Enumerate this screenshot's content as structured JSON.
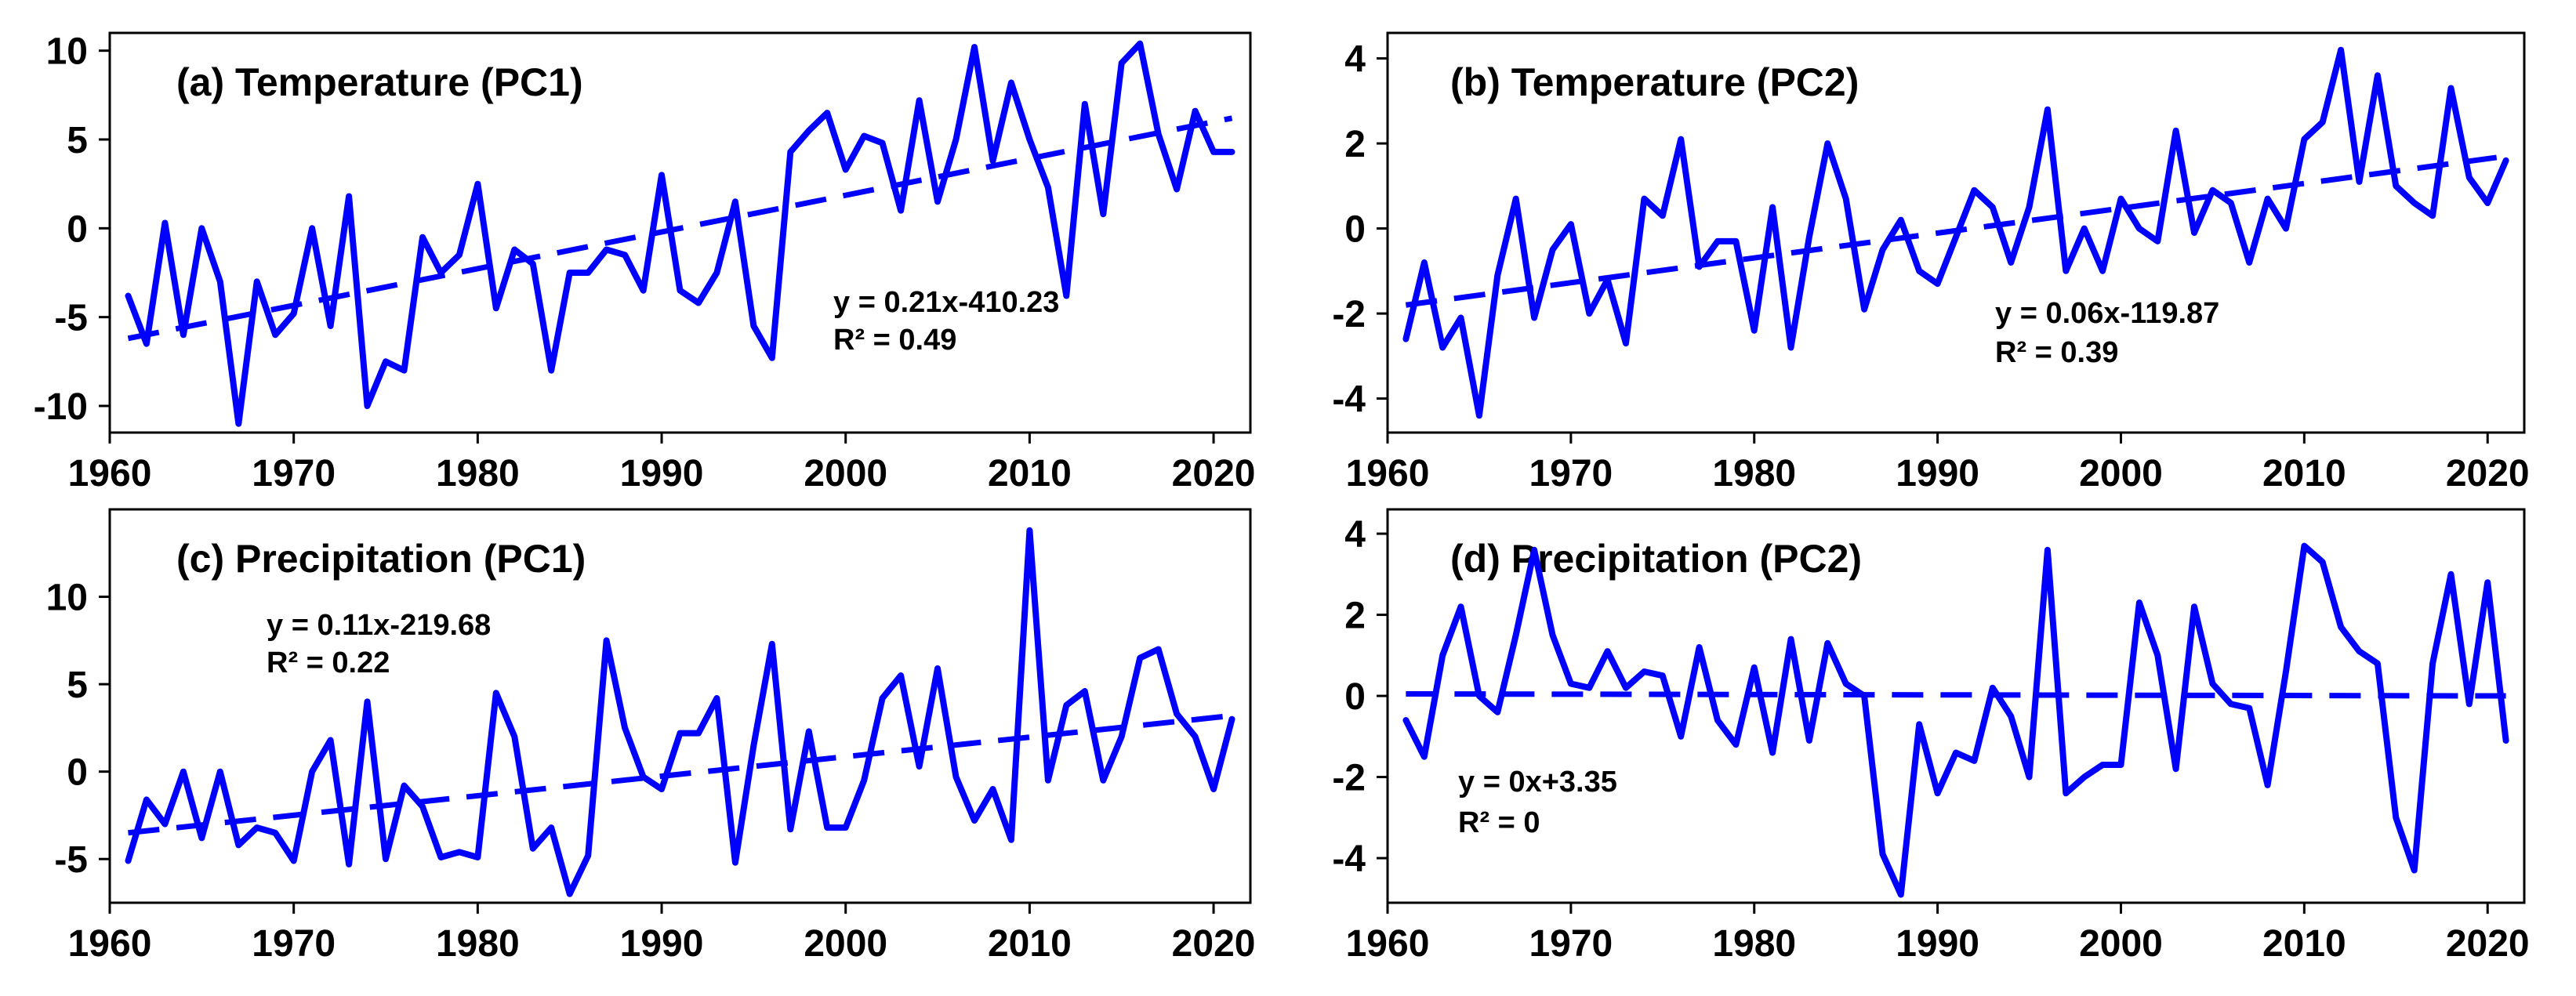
{
  "figure": {
    "background": "#ffffff",
    "series_color": "#0000ff"
  },
  "chart_data": [
    {
      "type": "line",
      "panel": "a",
      "title": "(a) Temperature (PC1)",
      "xlabel": "",
      "ylabel": "",
      "xlim": [
        1960,
        2022
      ],
      "ylim": [
        -11.5,
        11
      ],
      "xticks": [
        1960,
        1970,
        1980,
        1990,
        2000,
        2010,
        2020
      ],
      "yticks": [
        -10,
        -5,
        0,
        5,
        10
      ],
      "x": [
        1961,
        1962,
        1963,
        1964,
        1965,
        1966,
        1967,
        1968,
        1969,
        1970,
        1971,
        1972,
        1973,
        1974,
        1975,
        1976,
        1977,
        1978,
        1979,
        1980,
        1981,
        1982,
        1983,
        1984,
        1985,
        1986,
        1987,
        1988,
        1989,
        1990,
        1991,
        1992,
        1993,
        1994,
        1995,
        1996,
        1997,
        1998,
        1999,
        2000,
        2001,
        2002,
        2003,
        2004,
        2005,
        2006,
        2007,
        2008,
        2009,
        2010,
        2011,
        2012,
        2013,
        2014,
        2015,
        2016,
        2017,
        2018,
        2019,
        2020,
        2021
      ],
      "values": [
        -3.8,
        -6.5,
        0.3,
        -6.0,
        0.0,
        -3.0,
        -11.0,
        -3.0,
        -6.0,
        -4.8,
        0.0,
        -5.5,
        1.8,
        -10.0,
        -7.5,
        -8.0,
        -0.5,
        -2.5,
        -1.5,
        2.5,
        -4.5,
        -1.2,
        -2.0,
        -8.0,
        -2.5,
        -2.5,
        -1.2,
        -1.5,
        -3.5,
        3.0,
        -3.5,
        -4.2,
        -2.5,
        1.5,
        -5.5,
        -7.3,
        4.3,
        5.5,
        6.5,
        3.3,
        5.2,
        4.8,
        1.0,
        7.2,
        1.5,
        5.0,
        10.2,
        3.8,
        8.2,
        5.0,
        2.3,
        -3.8,
        7.0,
        0.8,
        9.3,
        10.4,
        5.3,
        2.2,
        6.6,
        4.3,
        4.3
      ],
      "trend": {
        "slope": 0.21,
        "intercept": -410.23,
        "x": [
          1961,
          2021
        ],
        "y": [
          -6.2,
          6.2
        ]
      },
      "equation": "y = 0.21x-410.23",
      "r2": "R² = 0.49"
    },
    {
      "type": "line",
      "panel": "b",
      "title": "(b) Temperature (PC2)",
      "xlabel": "",
      "ylabel": "",
      "xlim": [
        1960,
        2022
      ],
      "ylim": [
        -4.8,
        4.6
      ],
      "xticks": [
        1960,
        1970,
        1980,
        1990,
        2000,
        2010,
        2020
      ],
      "yticks": [
        -4,
        -2,
        0,
        2,
        4
      ],
      "x": [
        1961,
        1962,
        1963,
        1964,
        1965,
        1966,
        1967,
        1968,
        1969,
        1970,
        1971,
        1972,
        1973,
        1974,
        1975,
        1976,
        1977,
        1978,
        1979,
        1980,
        1981,
        1982,
        1983,
        1984,
        1985,
        1986,
        1987,
        1988,
        1989,
        1990,
        1991,
        1992,
        1993,
        1994,
        1995,
        1996,
        1997,
        1998,
        1999,
        2000,
        2001,
        2002,
        2003,
        2004,
        2005,
        2006,
        2007,
        2008,
        2009,
        2010,
        2011,
        2012,
        2013,
        2014,
        2015,
        2016,
        2017,
        2018,
        2019,
        2020,
        2021
      ],
      "values": [
        -2.6,
        -0.8,
        -2.8,
        -2.1,
        -4.4,
        -1.1,
        0.7,
        -2.1,
        -0.5,
        0.1,
        -2.0,
        -1.2,
        -2.7,
        0.7,
        0.3,
        2.1,
        -0.9,
        -0.3,
        -0.3,
        -2.4,
        0.5,
        -2.8,
        -0.2,
        2.0,
        0.7,
        -1.9,
        -0.5,
        0.2,
        -1.0,
        -1.3,
        -0.2,
        0.9,
        0.5,
        -0.8,
        0.5,
        2.8,
        -1.0,
        0.0,
        -1.0,
        0.7,
        0.0,
        -0.3,
        2.3,
        -0.1,
        0.9,
        0.6,
        -0.8,
        0.7,
        0.0,
        2.1,
        2.5,
        4.2,
        1.1,
        3.6,
        1.0,
        0.6,
        0.3,
        3.3,
        1.2,
        0.6,
        1.6
      ],
      "trend": {
        "slope": 0.06,
        "intercept": -119.87,
        "x": [
          1961,
          2021
        ],
        "y": [
          -1.8,
          1.7
        ]
      },
      "equation": "y = 0.06x-119.87",
      "r2": "R² = 0.39"
    },
    {
      "type": "line",
      "panel": "c",
      "title": "(c) Precipitation (PC1)",
      "xlabel": "",
      "ylabel": "",
      "xlim": [
        1960,
        2022
      ],
      "ylim": [
        -7.5,
        15
      ],
      "xticks": [
        1960,
        1970,
        1980,
        1990,
        2000,
        2010,
        2020
      ],
      "yticks": [
        -5,
        0,
        5,
        10
      ],
      "x": [
        1961,
        1962,
        1963,
        1964,
        1965,
        1966,
        1967,
        1968,
        1969,
        1970,
        1971,
        1972,
        1973,
        1974,
        1975,
        1976,
        1977,
        1978,
        1979,
        1980,
        1981,
        1982,
        1983,
        1984,
        1985,
        1986,
        1987,
        1988,
        1989,
        1990,
        1991,
        1992,
        1993,
        1994,
        1995,
        1996,
        1997,
        1998,
        1999,
        2000,
        2001,
        2002,
        2003,
        2004,
        2005,
        2006,
        2007,
        2008,
        2009,
        2010,
        2011,
        2012,
        2013,
        2014,
        2015,
        2016,
        2017,
        2018,
        2019,
        2020,
        2021
      ],
      "values": [
        -5.1,
        -1.6,
        -3.0,
        0.0,
        -3.8,
        0.0,
        -4.2,
        -3.2,
        -3.5,
        -5.1,
        0.0,
        1.8,
        -5.3,
        4.0,
        -5.0,
        -0.8,
        -2.0,
        -4.9,
        -4.6,
        -4.9,
        4.5,
        2.0,
        -4.4,
        -3.2,
        -7.0,
        -4.8,
        7.5,
        2.5,
        -0.3,
        -1.0,
        2.2,
        2.2,
        4.2,
        -5.2,
        1.5,
        7.3,
        -3.3,
        2.3,
        -3.2,
        -3.2,
        -0.5,
        4.2,
        5.5,
        0.3,
        5.9,
        -0.3,
        -2.8,
        -1.0,
        -3.9,
        13.8,
        -0.5,
        3.8,
        4.6,
        -0.5,
        2.0,
        6.5,
        7.0,
        3.3,
        2.0,
        -1.0,
        3.0
      ],
      "trend": {
        "slope": 0.11,
        "intercept": -219.68,
        "x": [
          1961,
          2021
        ],
        "y": [
          -3.5,
          3.2
        ]
      },
      "equation": "y = 0.11x-219.68",
      "r2": "R² = 0.22"
    },
    {
      "type": "line",
      "panel": "d",
      "title": "(d) Precipitation (PC2)",
      "xlabel": "",
      "ylabel": "",
      "xlim": [
        1960,
        2022
      ],
      "ylim": [
        -5.1,
        4.6
      ],
      "xticks": [
        1960,
        1970,
        1980,
        1990,
        2000,
        2010,
        2020
      ],
      "yticks": [
        -4,
        -2,
        0,
        2,
        4
      ],
      "x": [
        1961,
        1962,
        1963,
        1964,
        1965,
        1966,
        1967,
        1968,
        1969,
        1970,
        1971,
        1972,
        1973,
        1974,
        1975,
        1976,
        1977,
        1978,
        1979,
        1980,
        1981,
        1982,
        1983,
        1984,
        1985,
        1986,
        1987,
        1988,
        1989,
        1990,
        1991,
        1992,
        1993,
        1994,
        1995,
        1996,
        1997,
        1998,
        1999,
        2000,
        2001,
        2002,
        2003,
        2004,
        2005,
        2006,
        2007,
        2008,
        2009,
        2010,
        2011,
        2012,
        2013,
        2014,
        2015,
        2016,
        2017,
        2018,
        2019,
        2020,
        2021
      ],
      "values": [
        -0.6,
        -1.5,
        1.0,
        2.2,
        0.0,
        -0.4,
        1.5,
        3.6,
        1.5,
        0.3,
        0.2,
        1.1,
        0.2,
        0.6,
        0.5,
        -1.0,
        1.2,
        -0.6,
        -1.2,
        0.7,
        -1.4,
        1.4,
        -1.1,
        1.3,
        0.3,
        0.0,
        -3.9,
        -4.9,
        -0.7,
        -2.4,
        -1.4,
        -1.6,
        0.2,
        -0.5,
        -2.0,
        3.6,
        -2.4,
        -2.0,
        -1.7,
        -1.7,
        2.3,
        1.0,
        -1.8,
        2.2,
        0.3,
        -0.2,
        -0.3,
        -2.2,
        0.6,
        3.7,
        3.3,
        1.7,
        1.1,
        0.8,
        -3.0,
        -4.3,
        0.8,
        3.0,
        -0.2,
        2.8,
        -1.1
      ],
      "trend": {
        "slope": 0,
        "intercept": 3.35,
        "x": [
          1961,
          2021
        ],
        "y": [
          0.05,
          0.0
        ]
      },
      "equation": "y = 0x+3.35",
      "r2": "R² = 0"
    }
  ]
}
